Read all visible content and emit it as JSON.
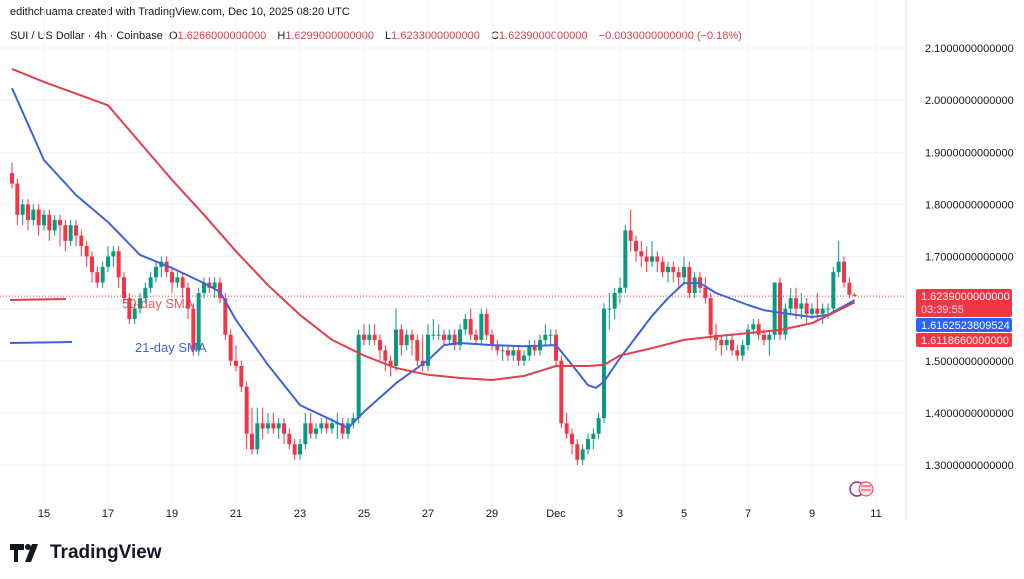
{
  "header": {
    "credit": "edithchuama created with TradingView.com, Dec 10, 2025 08:20 UTC",
    "symbol": "SUI / US Dollar · 4h · Coinbase",
    "open_label": "O",
    "open": "1.6266000000000",
    "high_label": "H",
    "high": "1.6299000000000",
    "low_label": "L",
    "low": "1.6233000000000",
    "close_label": "C",
    "close": "1.6239000000000",
    "change": "−0.0030000000000 (−0.18%)"
  },
  "price_axis": {
    "ticks": [
      "2.1000000000000",
      "2.0000000000000",
      "1.9000000000000",
      "1.8000000000000",
      "1.7000000000000",
      "1.5000000000000",
      "1.4000000000000",
      "1.3000000000000"
    ],
    "tick_values": [
      2.1,
      2.0,
      1.9,
      1.8,
      1.7,
      1.5,
      1.4,
      1.3
    ],
    "last_price": "1.6239000000000",
    "countdown": "03:39:55",
    "sma21_label": "1.6162523809524",
    "sma50_label": "1.6118660000000"
  },
  "time_axis": {
    "ticks": [
      {
        "label": "15",
        "date": "2025-11-15T00:00Z"
      },
      {
        "label": "17",
        "date": "2025-11-17T00:00Z"
      },
      {
        "label": "19",
        "date": "2025-11-19T00:00Z"
      },
      {
        "label": "21",
        "date": "2025-11-21T00:00Z"
      },
      {
        "label": "23",
        "date": "2025-11-23T00:00Z"
      },
      {
        "label": "25",
        "date": "2025-11-25T00:00Z"
      },
      {
        "label": "27",
        "date": "2025-11-27T00:00Z"
      },
      {
        "label": "29",
        "date": "2025-11-29T00:00Z"
      },
      {
        "label": "Dec",
        "date": "2025-12-01T00:00Z"
      },
      {
        "label": "3",
        "date": "2025-12-03T00:00Z"
      },
      {
        "label": "5",
        "date": "2025-12-05T00:00Z"
      },
      {
        "label": "7",
        "date": "2025-12-07T00:00Z"
      },
      {
        "label": "9",
        "date": "2025-12-09T00:00Z"
      },
      {
        "label": "11",
        "date": "2025-12-11T00:00Z"
      }
    ]
  },
  "annotations": {
    "sma50": "50-day SMA",
    "sma21": "21-day SMA"
  },
  "colors": {
    "up": "#089981",
    "down": "#f23645",
    "sma21": "#2962ff",
    "sma50": "#e0404c",
    "grid": "#f0f3fa"
  },
  "logo": "TradingView",
  "chart_data": {
    "type": "candlestick",
    "interval": "4h",
    "start": "2025-11-14T00:00Z",
    "ylim": [
      1.22,
      2.14
    ],
    "grid": true,
    "ohlc": [
      [
        1.86,
        1.88,
        1.83,
        1.84
      ],
      [
        1.84,
        1.85,
        1.76,
        1.78
      ],
      [
        1.78,
        1.81,
        1.76,
        1.8
      ],
      [
        1.8,
        1.81,
        1.75,
        1.77
      ],
      [
        1.77,
        1.8,
        1.76,
        1.79
      ],
      [
        1.79,
        1.8,
        1.74,
        1.76
      ],
      [
        1.76,
        1.79,
        1.75,
        1.78
      ],
      [
        1.78,
        1.79,
        1.73,
        1.75
      ],
      [
        1.75,
        1.78,
        1.74,
        1.77
      ],
      [
        1.77,
        1.78,
        1.72,
        1.76
      ],
      [
        1.76,
        1.77,
        1.71,
        1.73
      ],
      [
        1.73,
        1.77,
        1.72,
        1.76
      ],
      [
        1.76,
        1.77,
        1.72,
        1.74
      ],
      [
        1.74,
        1.75,
        1.7,
        1.72
      ],
      [
        1.72,
        1.73,
        1.68,
        1.7
      ],
      [
        1.7,
        1.71,
        1.65,
        1.67
      ],
      [
        1.67,
        1.68,
        1.64,
        1.65
      ],
      [
        1.65,
        1.69,
        1.64,
        1.68
      ],
      [
        1.68,
        1.72,
        1.67,
        1.7
      ],
      [
        1.7,
        1.72,
        1.68,
        1.71
      ],
      [
        1.71,
        1.72,
        1.64,
        1.66
      ],
      [
        1.66,
        1.67,
        1.61,
        1.62
      ],
      [
        1.62,
        1.63,
        1.57,
        1.58
      ],
      [
        1.58,
        1.61,
        1.57,
        1.6
      ],
      [
        1.6,
        1.63,
        1.59,
        1.62
      ],
      [
        1.62,
        1.65,
        1.61,
        1.64
      ],
      [
        1.64,
        1.67,
        1.63,
        1.66
      ],
      [
        1.66,
        1.69,
        1.65,
        1.68
      ],
      [
        1.68,
        1.7,
        1.66,
        1.69
      ],
      [
        1.69,
        1.7,
        1.66,
        1.67
      ],
      [
        1.67,
        1.68,
        1.63,
        1.65
      ],
      [
        1.65,
        1.67,
        1.64,
        1.66
      ],
      [
        1.66,
        1.67,
        1.62,
        1.64
      ],
      [
        1.64,
        1.65,
        1.58,
        1.6
      ],
      [
        1.6,
        1.61,
        1.51,
        1.52
      ],
      [
        1.52,
        1.64,
        1.51,
        1.63
      ],
      [
        1.63,
        1.66,
        1.62,
        1.65
      ],
      [
        1.65,
        1.66,
        1.63,
        1.64
      ],
      [
        1.64,
        1.66,
        1.62,
        1.65
      ],
      [
        1.65,
        1.66,
        1.61,
        1.62
      ],
      [
        1.62,
        1.63,
        1.54,
        1.55
      ],
      [
        1.55,
        1.56,
        1.49,
        1.5
      ],
      [
        1.5,
        1.53,
        1.48,
        1.49
      ],
      [
        1.49,
        1.5,
        1.44,
        1.45
      ],
      [
        1.45,
        1.46,
        1.33,
        1.36
      ],
      [
        1.36,
        1.41,
        1.32,
        1.33
      ],
      [
        1.33,
        1.41,
        1.32,
        1.38
      ],
      [
        1.38,
        1.41,
        1.35,
        1.37
      ],
      [
        1.37,
        1.4,
        1.36,
        1.38
      ],
      [
        1.38,
        1.4,
        1.36,
        1.37
      ],
      [
        1.37,
        1.39,
        1.35,
        1.38
      ],
      [
        1.38,
        1.39,
        1.34,
        1.36
      ],
      [
        1.36,
        1.37,
        1.33,
        1.34
      ],
      [
        1.34,
        1.35,
        1.31,
        1.32
      ],
      [
        1.32,
        1.35,
        1.31,
        1.34
      ],
      [
        1.34,
        1.4,
        1.33,
        1.38
      ],
      [
        1.38,
        1.4,
        1.35,
        1.36
      ],
      [
        1.36,
        1.38,
        1.35,
        1.37
      ],
      [
        1.37,
        1.39,
        1.36,
        1.38
      ],
      [
        1.38,
        1.39,
        1.36,
        1.37
      ],
      [
        1.37,
        1.39,
        1.36,
        1.38
      ],
      [
        1.38,
        1.4,
        1.35,
        1.38
      ],
      [
        1.38,
        1.39,
        1.35,
        1.36
      ],
      [
        1.36,
        1.39,
        1.35,
        1.38
      ],
      [
        1.38,
        1.4,
        1.37,
        1.39
      ],
      [
        1.39,
        1.56,
        1.38,
        1.55
      ],
      [
        1.55,
        1.57,
        1.53,
        1.54
      ],
      [
        1.54,
        1.57,
        1.53,
        1.55
      ],
      [
        1.55,
        1.57,
        1.53,
        1.54
      ],
      [
        1.54,
        1.55,
        1.5,
        1.52
      ],
      [
        1.52,
        1.53,
        1.48,
        1.5
      ],
      [
        1.5,
        1.51,
        1.47,
        1.49
      ],
      [
        1.49,
        1.6,
        1.48,
        1.56
      ],
      [
        1.56,
        1.57,
        1.51,
        1.53
      ],
      [
        1.53,
        1.56,
        1.52,
        1.55
      ],
      [
        1.55,
        1.56,
        1.51,
        1.54
      ],
      [
        1.54,
        1.55,
        1.49,
        1.5
      ],
      [
        1.5,
        1.55,
        1.48,
        1.49
      ],
      [
        1.49,
        1.57,
        1.48,
        1.55
      ],
      [
        1.55,
        1.58,
        1.54,
        1.55
      ],
      [
        1.55,
        1.57,
        1.54,
        1.55
      ],
      [
        1.55,
        1.56,
        1.53,
        1.54
      ],
      [
        1.54,
        1.56,
        1.53,
        1.55
      ],
      [
        1.55,
        1.56,
        1.52,
        1.53
      ],
      [
        1.53,
        1.57,
        1.52,
        1.56
      ],
      [
        1.56,
        1.59,
        1.55,
        1.58
      ],
      [
        1.58,
        1.6,
        1.54,
        1.55
      ],
      [
        1.55,
        1.56,
        1.53,
        1.54
      ],
      [
        1.54,
        1.6,
        1.53,
        1.59
      ],
      [
        1.59,
        1.6,
        1.54,
        1.55
      ],
      [
        1.55,
        1.56,
        1.52,
        1.53
      ],
      [
        1.53,
        1.54,
        1.51,
        1.52
      ],
      [
        1.52,
        1.53,
        1.5,
        1.52
      ],
      [
        1.52,
        1.53,
        1.5,
        1.51
      ],
      [
        1.51,
        1.53,
        1.5,
        1.52
      ],
      [
        1.52,
        1.53,
        1.49,
        1.5
      ],
      [
        1.5,
        1.52,
        1.49,
        1.51
      ],
      [
        1.51,
        1.54,
        1.5,
        1.53
      ],
      [
        1.53,
        1.54,
        1.51,
        1.52
      ],
      [
        1.52,
        1.55,
        1.51,
        1.54
      ],
      [
        1.54,
        1.57,
        1.53,
        1.55
      ],
      [
        1.55,
        1.56,
        1.53,
        1.55
      ],
      [
        1.55,
        1.56,
        1.49,
        1.5
      ],
      [
        1.5,
        1.51,
        1.37,
        1.38
      ],
      [
        1.38,
        1.4,
        1.35,
        1.36
      ],
      [
        1.36,
        1.37,
        1.32,
        1.34
      ],
      [
        1.34,
        1.35,
        1.3,
        1.31
      ],
      [
        1.31,
        1.34,
        1.3,
        1.33
      ],
      [
        1.33,
        1.36,
        1.32,
        1.35
      ],
      [
        1.35,
        1.37,
        1.33,
        1.36
      ],
      [
        1.36,
        1.4,
        1.35,
        1.39
      ],
      [
        1.39,
        1.61,
        1.38,
        1.6
      ],
      [
        1.6,
        1.63,
        1.56,
        1.6
      ],
      [
        1.6,
        1.64,
        1.58,
        1.63
      ],
      [
        1.63,
        1.66,
        1.61,
        1.64
      ],
      [
        1.64,
        1.76,
        1.63,
        1.75
      ],
      [
        1.75,
        1.79,
        1.71,
        1.73
      ],
      [
        1.73,
        1.74,
        1.69,
        1.71
      ],
      [
        1.71,
        1.73,
        1.68,
        1.7
      ],
      [
        1.7,
        1.72,
        1.67,
        1.69
      ],
      [
        1.69,
        1.73,
        1.68,
        1.7
      ],
      [
        1.7,
        1.71,
        1.67,
        1.69
      ],
      [
        1.69,
        1.7,
        1.66,
        1.67
      ],
      [
        1.67,
        1.69,
        1.65,
        1.68
      ],
      [
        1.68,
        1.69,
        1.65,
        1.67
      ],
      [
        1.67,
        1.68,
        1.64,
        1.66
      ],
      [
        1.66,
        1.7,
        1.65,
        1.68
      ],
      [
        1.68,
        1.69,
        1.62,
        1.63
      ],
      [
        1.63,
        1.67,
        1.62,
        1.66
      ],
      [
        1.66,
        1.67,
        1.63,
        1.64
      ],
      [
        1.64,
        1.66,
        1.61,
        1.62
      ],
      [
        1.62,
        1.63,
        1.54,
        1.55
      ],
      [
        1.55,
        1.57,
        1.52,
        1.54
      ],
      [
        1.54,
        1.55,
        1.51,
        1.53
      ],
      [
        1.53,
        1.55,
        1.52,
        1.54
      ],
      [
        1.54,
        1.55,
        1.51,
        1.52
      ],
      [
        1.52,
        1.53,
        1.5,
        1.51
      ],
      [
        1.51,
        1.54,
        1.5,
        1.53
      ],
      [
        1.53,
        1.57,
        1.52,
        1.56
      ],
      [
        1.56,
        1.58,
        1.55,
        1.57
      ],
      [
        1.57,
        1.58,
        1.54,
        1.55
      ],
      [
        1.55,
        1.56,
        1.53,
        1.54
      ],
      [
        1.54,
        1.56,
        1.51,
        1.55
      ],
      [
        1.55,
        1.65,
        1.54,
        1.65
      ],
      [
        1.65,
        1.66,
        1.54,
        1.55
      ],
      [
        1.55,
        1.61,
        1.54,
        1.6
      ],
      [
        1.6,
        1.64,
        1.59,
        1.62
      ],
      [
        1.62,
        1.64,
        1.58,
        1.6
      ],
      [
        1.6,
        1.63,
        1.58,
        1.61
      ],
      [
        1.61,
        1.62,
        1.57,
        1.59
      ],
      [
        1.59,
        1.61,
        1.58,
        1.6
      ],
      [
        1.6,
        1.63,
        1.58,
        1.59
      ],
      [
        1.59,
        1.61,
        1.57,
        1.6
      ],
      [
        1.6,
        1.61,
        1.58,
        1.6
      ],
      [
        1.6,
        1.68,
        1.59,
        1.67
      ],
      [
        1.67,
        1.73,
        1.66,
        1.69
      ],
      [
        1.69,
        1.7,
        1.64,
        1.65
      ],
      [
        1.65,
        1.66,
        1.62,
        1.6266
      ],
      [
        1.6266,
        1.6299,
        1.6233,
        1.6239
      ]
    ],
    "series": [
      {
        "name": "21-day SMA",
        "points": [
          [
            "2025-11-14T00:00Z",
            2.023
          ],
          [
            "2025-11-15T00:00Z",
            1.885
          ],
          [
            "2025-11-16T00:00Z",
            1.818
          ],
          [
            "2025-11-17T00:00Z",
            1.766
          ],
          [
            "2025-11-18T00:00Z",
            1.703
          ],
          [
            "2025-11-19T00:00Z",
            1.678
          ],
          [
            "2025-11-20T00:00Z",
            1.649
          ],
          [
            "2025-11-20T12:00Z",
            1.632
          ],
          [
            "2025-11-21T00:00Z",
            1.578
          ],
          [
            "2025-11-22T00:00Z",
            1.492
          ],
          [
            "2025-11-23T00:00Z",
            1.415
          ],
          [
            "2025-11-24T00:00Z",
            1.386
          ],
          [
            "2025-11-24T12:00Z",
            1.371
          ],
          [
            "2025-11-25T00:00Z",
            1.402
          ],
          [
            "2025-11-26T00:00Z",
            1.457
          ],
          [
            "2025-11-27T00:00Z",
            1.501
          ],
          [
            "2025-11-27T12:00Z",
            1.53
          ],
          [
            "2025-11-28T00:00Z",
            1.534
          ],
          [
            "2025-11-29T00:00Z",
            1.53
          ],
          [
            "2025-11-30T00:00Z",
            1.528
          ],
          [
            "2025-12-01T00:00Z",
            1.53
          ],
          [
            "2025-12-01T12:00Z",
            1.492
          ],
          [
            "2025-12-02T00:00Z",
            1.453
          ],
          [
            "2025-12-02T06:00Z",
            1.448
          ],
          [
            "2025-12-02T12:00Z",
            1.46
          ],
          [
            "2025-12-03T00:00Z",
            1.505
          ],
          [
            "2025-12-04T00:00Z",
            1.586
          ],
          [
            "2025-12-04T12:00Z",
            1.62
          ],
          [
            "2025-12-05T00:00Z",
            1.649
          ],
          [
            "2025-12-05T12:00Z",
            1.649
          ],
          [
            "2025-12-06T00:00Z",
            1.63
          ],
          [
            "2025-12-07T00:00Z",
            1.607
          ],
          [
            "2025-12-07T12:00Z",
            1.597
          ],
          [
            "2025-12-08T00:00Z",
            1.592
          ],
          [
            "2025-12-09T00:00Z",
            1.584
          ],
          [
            "2025-12-09T12:00Z",
            1.588
          ],
          [
            "2025-12-10T08:00Z",
            1.6163
          ]
        ]
      },
      {
        "name": "50-day SMA",
        "points": [
          [
            "2025-11-14T00:00Z",
            2.06
          ],
          [
            "2025-11-15T00:00Z",
            2.035
          ],
          [
            "2025-11-17T00:00Z",
            1.99
          ],
          [
            "2025-11-19T00:00Z",
            1.847
          ],
          [
            "2025-11-20T00:00Z",
            1.78
          ],
          [
            "2025-11-21T00:00Z",
            1.71
          ],
          [
            "2025-11-22T00:00Z",
            1.645
          ],
          [
            "2025-11-23T00:00Z",
            1.588
          ],
          [
            "2025-11-24T00:00Z",
            1.54
          ],
          [
            "2025-11-25T00:00Z",
            1.51
          ],
          [
            "2025-11-26T00:00Z",
            1.486
          ],
          [
            "2025-11-27T00:00Z",
            1.473
          ],
          [
            "2025-11-28T00:00Z",
            1.467
          ],
          [
            "2025-11-29T00:00Z",
            1.463
          ],
          [
            "2025-11-30T00:00Z",
            1.471
          ],
          [
            "2025-12-01T00:00Z",
            1.49
          ],
          [
            "2025-12-02T00:00Z",
            1.49
          ],
          [
            "2025-12-02T12:00Z",
            1.492
          ],
          [
            "2025-12-03T00:00Z",
            1.51
          ],
          [
            "2025-12-04T00:00Z",
            1.524
          ],
          [
            "2025-12-05T00:00Z",
            1.54
          ],
          [
            "2025-12-06T00:00Z",
            1.547
          ],
          [
            "2025-12-07T00:00Z",
            1.553
          ],
          [
            "2025-12-08T00:00Z",
            1.559
          ],
          [
            "2025-12-09T00:00Z",
            1.572
          ],
          [
            "2025-12-10T08:00Z",
            1.6119
          ]
        ]
      }
    ]
  }
}
